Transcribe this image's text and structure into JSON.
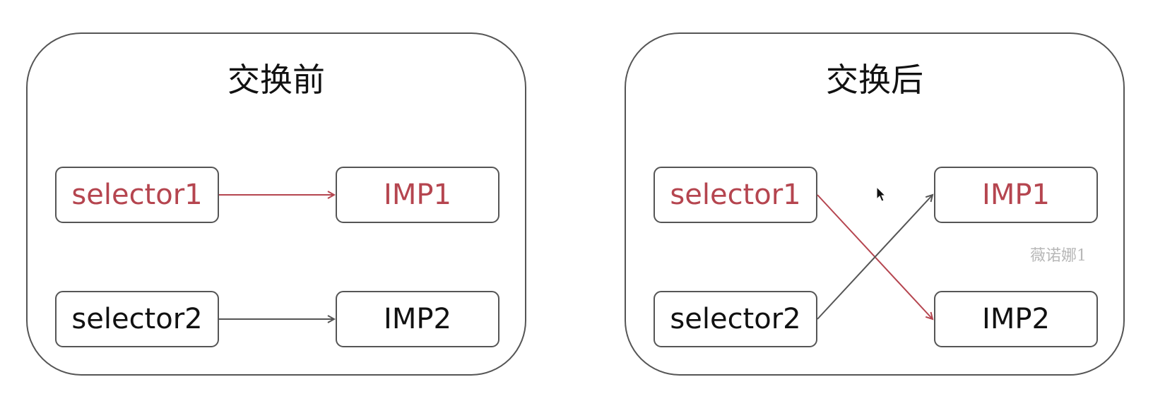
{
  "colors": {
    "highlight": "#b5454f",
    "normal": "#111111",
    "border": "#555555",
    "arrow_normal": "#555555",
    "watermark": "#b7b7b7"
  },
  "panels": [
    {
      "title": "交换前",
      "nodes": [
        {
          "label": "selector1",
          "color": "highlight"
        },
        {
          "label": "IMP1",
          "color": "highlight"
        },
        {
          "label": "selector2",
          "color": "normal"
        },
        {
          "label": "IMP2",
          "color": "normal"
        }
      ],
      "edges": [
        {
          "from": "selector1",
          "to": "IMP1",
          "color": "highlight"
        },
        {
          "from": "selector2",
          "to": "IMP2",
          "color": "normal"
        }
      ]
    },
    {
      "title": "交换后",
      "nodes": [
        {
          "label": "selector1",
          "color": "highlight"
        },
        {
          "label": "IMP1",
          "color": "highlight"
        },
        {
          "label": "selector2",
          "color": "normal"
        },
        {
          "label": "IMP2",
          "color": "normal"
        }
      ],
      "edges": [
        {
          "from": "selector1",
          "to": "IMP2",
          "color": "highlight"
        },
        {
          "from": "selector2",
          "to": "IMP1",
          "color": "normal"
        }
      ]
    }
  ],
  "watermark": "薇诺娜1",
  "cursor": "mouse-pointer-icon"
}
